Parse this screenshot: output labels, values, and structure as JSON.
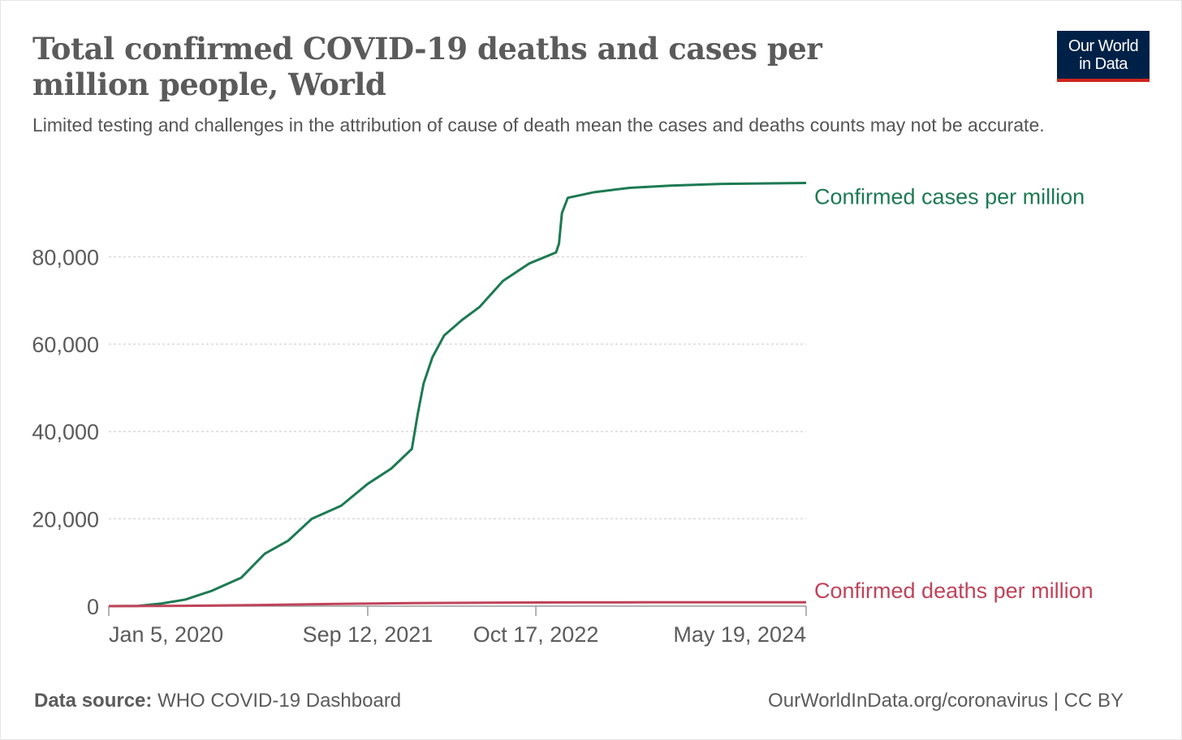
{
  "title": "Total confirmed COVID-19 deaths and cases per million people, World",
  "subtitle": "Limited testing and challenges in the attribution of cause of death mean the cases and deaths counts may not be accurate.",
  "logo": {
    "line1": "Our World",
    "line2": "in Data",
    "bg_color": "#002147",
    "accent_color": "#ce261e"
  },
  "footer": {
    "source_label": "Data source:",
    "source_value": "WHO COVID-19 Dashboard",
    "right": "OurWorldInData.org/coronavirus | CC BY"
  },
  "chart_data": {
    "type": "line",
    "x_type": "date",
    "xlim": [
      "2020-01-05",
      "2024-07-21"
    ],
    "ylim": [
      0,
      97000
    ],
    "grid": true,
    "legend": "inline labels at right end of lines",
    "x_ticks": [
      {
        "date": "2020-01-05",
        "label": "Jan 5, 2020"
      },
      {
        "date": "2021-09-12",
        "label": "Sep 12, 2021"
      },
      {
        "date": "2022-10-17",
        "label": "Oct 17, 2022"
      },
      {
        "date": "2024-05-19",
        "label": "May 19, 2024"
      }
    ],
    "y_ticks": [
      {
        "value": 0,
        "label": "0"
      },
      {
        "value": 20000,
        "label": "20,000"
      },
      {
        "value": 40000,
        "label": "40,000"
      },
      {
        "value": 60000,
        "label": "60,000"
      },
      {
        "value": 80000,
        "label": "80,000"
      }
    ],
    "series": [
      {
        "name": "Confirmed cases per million",
        "color": "#1d7a53",
        "points": [
          [
            "2020-01-05",
            0
          ],
          [
            "2020-03-15",
            50
          ],
          [
            "2020-05-10",
            600
          ],
          [
            "2020-07-05",
            1500
          ],
          [
            "2020-09-06",
            3500
          ],
          [
            "2020-11-15",
            6500
          ],
          [
            "2021-01-10",
            12000
          ],
          [
            "2021-03-07",
            15000
          ],
          [
            "2021-05-02",
            20000
          ],
          [
            "2021-07-11",
            23000
          ],
          [
            "2021-09-12",
            28000
          ],
          [
            "2021-11-07",
            31500
          ],
          [
            "2021-12-26",
            36000
          ],
          [
            "2022-01-09",
            44000
          ],
          [
            "2022-01-23",
            51000
          ],
          [
            "2022-02-13",
            57000
          ],
          [
            "2022-03-13",
            62000
          ],
          [
            "2022-04-24",
            65500
          ],
          [
            "2022-06-05",
            68500
          ],
          [
            "2022-07-31",
            74500
          ],
          [
            "2022-10-02",
            78500
          ],
          [
            "2022-12-04",
            81000
          ],
          [
            "2022-12-11",
            83000
          ],
          [
            "2022-12-18",
            90000
          ],
          [
            "2023-01-01",
            93500
          ],
          [
            "2023-03-05",
            94800
          ],
          [
            "2023-05-28",
            95800
          ],
          [
            "2023-09-03",
            96300
          ],
          [
            "2024-01-07",
            96700
          ],
          [
            "2024-07-21",
            96900
          ]
        ]
      },
      {
        "name": "Confirmed deaths per million",
        "color": "#c0435a",
        "points": [
          [
            "2020-01-05",
            0
          ],
          [
            "2020-07-05",
            70
          ],
          [
            "2021-01-03",
            250
          ],
          [
            "2021-07-04",
            520
          ],
          [
            "2022-01-02",
            700
          ],
          [
            "2022-07-03",
            800
          ],
          [
            "2023-01-01",
            850
          ],
          [
            "2023-07-02",
            875
          ],
          [
            "2024-01-07",
            885
          ],
          [
            "2024-07-21",
            890
          ]
        ]
      }
    ]
  }
}
